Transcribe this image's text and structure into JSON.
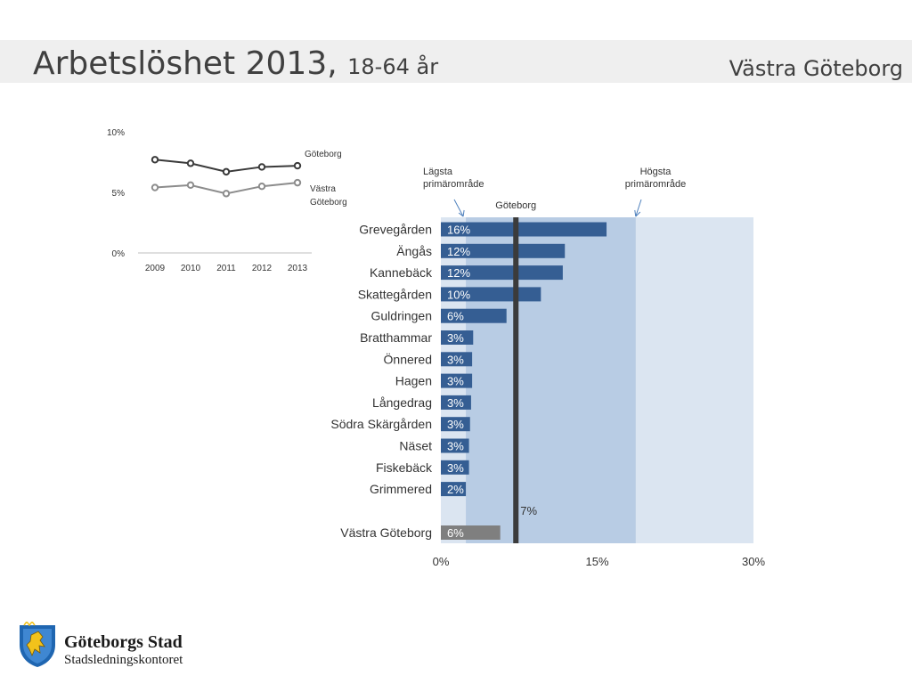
{
  "header": {
    "title": "Arbetslöshet 2013,",
    "subtitle": "18-64 år",
    "region": "Västra Göteborg"
  },
  "chart_data": [
    {
      "type": "line",
      "x": [
        "2009",
        "2010",
        "2011",
        "2012",
        "2013"
      ],
      "ylim": [
        0,
        10
      ],
      "yticks": [
        "0%",
        "5%",
        "10%"
      ],
      "series": [
        {
          "name": "Göteborg",
          "values": [
            7.7,
            7.4,
            6.7,
            7.1,
            7.2
          ],
          "color": "#3a3a3a"
        },
        {
          "name": "Västra Göteborg",
          "label_lines": [
            "Västra",
            "Göteborg"
          ],
          "values": [
            5.4,
            5.6,
            4.9,
            5.5,
            5.8
          ],
          "color": "#8c8c8c"
        }
      ]
    },
    {
      "type": "bar",
      "orientation": "horizontal",
      "categories": [
        "Grevegården",
        "Ängås",
        "Kannebäck",
        "Skattegården",
        "Guldringen",
        "Bratthammar",
        "Önnered",
        "Hagen",
        "Långedrag",
        "Södra Skärgården",
        "Näset",
        "Fiskebäck",
        "Grimmered"
      ],
      "values": [
        16,
        12,
        12,
        10,
        6,
        3,
        3,
        3,
        3,
        3,
        3,
        3,
        2
      ],
      "bar_lengths": [
        15.9,
        11.9,
        11.7,
        9.6,
        6.3,
        3.1,
        3.0,
        3.0,
        2.9,
        2.8,
        2.7,
        2.7,
        2.4
      ],
      "data_labels": [
        "16%",
        "12%",
        "12%",
        "10%",
        "6%",
        "3%",
        "3%",
        "3%",
        "3%",
        "3%",
        "3%",
        "3%",
        "2%"
      ],
      "total": {
        "category": "Västra Göteborg",
        "value": 6,
        "bar_length": 5.7,
        "label": "6%"
      },
      "xlim": [
        0,
        30
      ],
      "xticks": [
        {
          "value": 0,
          "label": "0%"
        },
        {
          "value": 15,
          "label": "15%"
        },
        {
          "value": 30,
          "label": "30%"
        }
      ],
      "reference_line": {
        "name": "Göteborg",
        "value": 7.2,
        "label": "7%"
      },
      "range": {
        "low": {
          "value": 2.4,
          "label_lines": [
            "Lägsta",
            "primärområde"
          ]
        },
        "high": {
          "value": 18.7,
          "label_lines": [
            "Högsta",
            "primärområde"
          ]
        }
      },
      "colors": {
        "bar": "#355e93",
        "total_bar": "#7f7f7f",
        "range_fill": "#b8cce4",
        "background_fill": "#dbe5f1",
        "reference_line": "#3b3b3b",
        "annotation_arrow": "#4f81bd"
      }
    }
  ],
  "logo": {
    "name": "Göteborgs Stad",
    "department": "Stadsledningskontoret"
  }
}
